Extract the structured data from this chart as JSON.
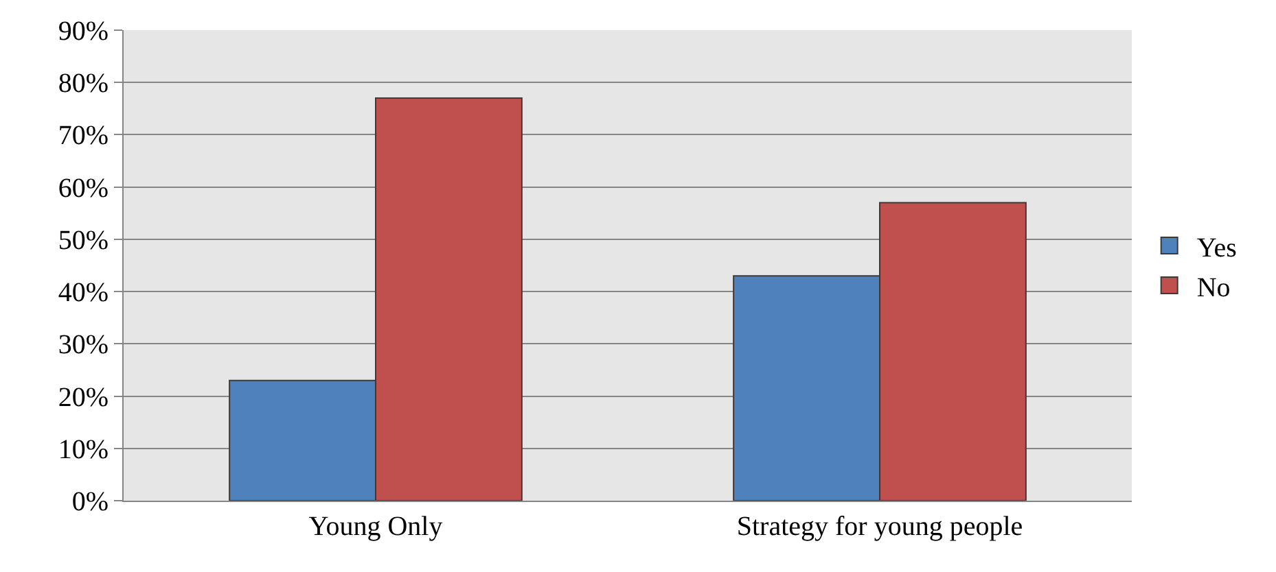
{
  "chart_data": {
    "type": "bar",
    "categories": [
      "Young Only",
      "Strategy for young people"
    ],
    "series": [
      {
        "name": "Yes",
        "color": "#4f81bd",
        "values": [
          23,
          43
        ]
      },
      {
        "name": "No",
        "color": "#c0504d",
        "values": [
          77,
          57
        ]
      }
    ],
    "ylim": [
      0,
      90
    ],
    "yticks": [
      {
        "value": 0,
        "label": "0%"
      },
      {
        "value": 10,
        "label": "10%"
      },
      {
        "value": 20,
        "label": "20%"
      },
      {
        "value": 30,
        "label": "30%"
      },
      {
        "value": 40,
        "label": "40%"
      },
      {
        "value": 50,
        "label": "50%"
      },
      {
        "value": 60,
        "label": "60%"
      },
      {
        "value": 70,
        "label": "70%"
      },
      {
        "value": 80,
        "label": "80%"
      },
      {
        "value": 90,
        "label": "90%"
      }
    ],
    "grid": "y",
    "legend": "right"
  }
}
